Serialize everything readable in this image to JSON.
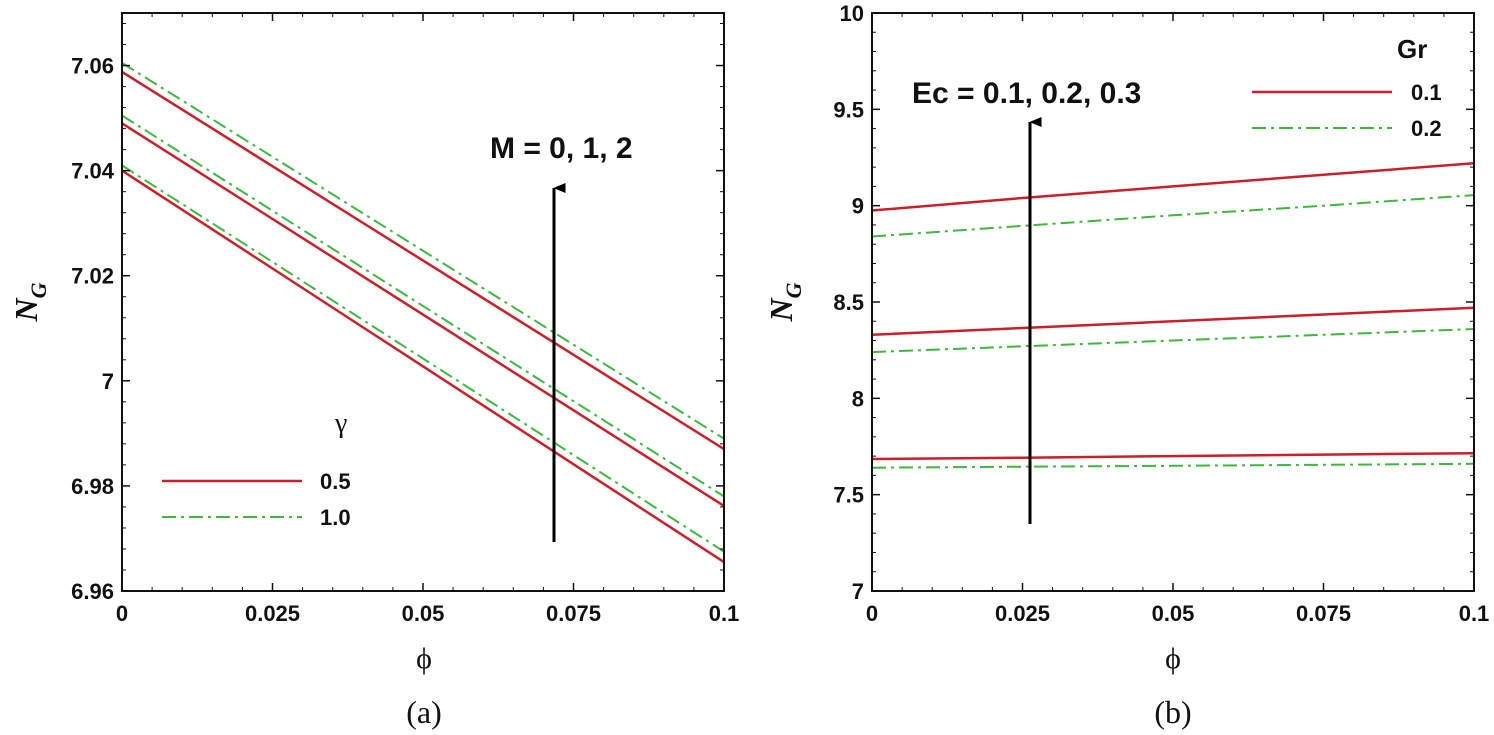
{
  "colors": {
    "series1": "#cc1f2a",
    "series2": "#3db83d",
    "axis": "#111111",
    "arrow": "#000000"
  },
  "chart_data": [
    {
      "type": "line",
      "caption": "(a)",
      "xlabel": "ϕ",
      "ylabel": "N",
      "ylabel_sub": "G",
      "xlim": [
        0,
        0.1
      ],
      "ylim": [
        6.96,
        7.07
      ],
      "xticks": [
        0,
        0.025,
        0.05,
        0.075,
        0.1
      ],
      "xtick_labels": [
        "0",
        "0.025",
        "0.05",
        "0.075",
        "0.1"
      ],
      "yticks": [
        6.96,
        6.98,
        7,
        7.02,
        7.04,
        7.06
      ],
      "ytick_labels": [
        "6.96",
        "6.98",
        "7",
        "7.02",
        "7.04",
        "7.06"
      ],
      "legend_title": "γ",
      "annotation": "M = 0, 1, 2",
      "series": [
        {
          "name": "0.5",
          "style": "solid",
          "lines": [
            {
              "x": [
                0,
                0.1
              ],
              "y": [
                7.04,
                6.9655
              ]
            },
            {
              "x": [
                0,
                0.1
              ],
              "y": [
                7.049,
                6.9762
              ]
            },
            {
              "x": [
                0,
                0.1
              ],
              "y": [
                7.0588,
                6.987
              ]
            }
          ]
        },
        {
          "name": "1.0",
          "style": "dashdot",
          "lines": [
            {
              "x": [
                0,
                0.1
              ],
              "y": [
                7.041,
                6.9675
              ]
            },
            {
              "x": [
                0,
                0.1
              ],
              "y": [
                7.0505,
                6.978
              ]
            },
            {
              "x": [
                0,
                0.1
              ],
              "y": [
                7.0605,
                6.989
              ]
            }
          ]
        }
      ]
    },
    {
      "type": "line",
      "caption": "(b)",
      "xlabel": "ϕ",
      "ylabel": "N",
      "ylabel_sub": "G",
      "xlim": [
        0,
        0.1
      ],
      "ylim": [
        7,
        10
      ],
      "xticks": [
        0,
        0.025,
        0.05,
        0.075,
        0.1
      ],
      "xtick_labels": [
        "0",
        "0.025",
        "0.05",
        "0.075",
        "0.1"
      ],
      "yticks": [
        7,
        7.5,
        8,
        8.5,
        9,
        9.5,
        10
      ],
      "ytick_labels": [
        "7",
        "7.5",
        "8",
        "8.5",
        "9",
        "9.5",
        "10"
      ],
      "legend_title": "Gr",
      "annotation": "Ec = 0.1, 0.2, 0.3",
      "series": [
        {
          "name": "0.1",
          "style": "solid",
          "lines": [
            {
              "x": [
                0,
                0.025,
                0.05,
                0.075,
                0.1
              ],
              "y": [
                7.685,
                7.692,
                7.7,
                7.708,
                7.715
              ]
            },
            {
              "x": [
                0,
                0.025,
                0.05,
                0.075,
                0.1
              ],
              "y": [
                8.33,
                8.365,
                8.4,
                8.435,
                8.47
              ]
            },
            {
              "x": [
                0,
                0.025,
                0.05,
                0.075,
                0.1
              ],
              "y": [
                8.975,
                9.04,
                9.1,
                9.16,
                9.22
              ]
            }
          ]
        },
        {
          "name": "0.2",
          "style": "dashdot",
          "lines": [
            {
              "x": [
                0,
                0.025,
                0.05,
                0.075,
                0.1
              ],
              "y": [
                7.64,
                7.645,
                7.65,
                7.655,
                7.66
              ]
            },
            {
              "x": [
                0,
                0.025,
                0.05,
                0.075,
                0.1
              ],
              "y": [
                8.24,
                8.27,
                8.3,
                8.33,
                8.36
              ]
            },
            {
              "x": [
                0,
                0.025,
                0.05,
                0.075,
                0.1
              ],
              "y": [
                8.84,
                8.895,
                8.95,
                9.0,
                9.055
              ]
            }
          ]
        }
      ]
    }
  ]
}
